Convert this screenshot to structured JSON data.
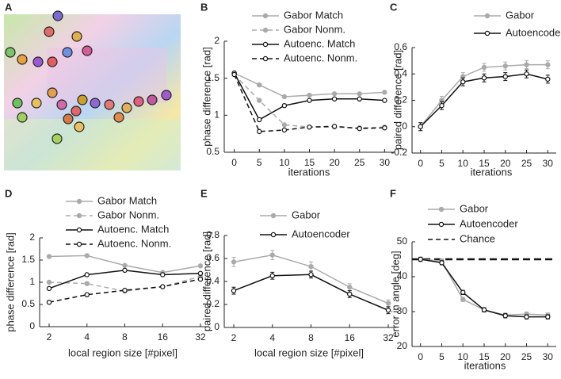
{
  "panel_labels": [
    "A",
    "B",
    "C",
    "D",
    "E",
    "F"
  ],
  "chart_data": [
    {
      "type": "line",
      "xlabel": "iterations",
      "ylabel": "phase difference [rad]",
      "x": [
        0,
        5,
        10,
        15,
        20,
        25,
        30
      ],
      "xlim": [
        -2,
        32
      ],
      "xticks": [
        0,
        5,
        10,
        15,
        20,
        25,
        30
      ],
      "ylim": [
        0.5,
        2
      ],
      "yticks": [
        0.5,
        1,
        1.5,
        2
      ],
      "series": [
        {
          "name": "Gabor Match",
          "color": "#aaaaaa",
          "dash": false,
          "marker": "dot",
          "values": [
            1.57,
            1.41,
            1.25,
            1.27,
            1.29,
            1.29,
            1.31
          ]
        },
        {
          "name": "Gabor Nonm.",
          "color": "#aaaaaa",
          "dash": true,
          "marker": "dot",
          "values": [
            1.55,
            1.2,
            0.87,
            0.84,
            0.84,
            0.83,
            0.84
          ]
        },
        {
          "name": "Autoenc. Match",
          "color": "#111111",
          "dash": false,
          "marker": "open",
          "values": [
            1.57,
            0.94,
            1.13,
            1.2,
            1.22,
            1.22,
            1.2
          ]
        },
        {
          "name": "Autoenc. Nonm.",
          "color": "#111111",
          "dash": true,
          "marker": "open",
          "values": [
            1.55,
            0.78,
            0.8,
            0.84,
            0.85,
            0.82,
            0.83
          ]
        }
      ]
    },
    {
      "type": "line",
      "xlabel": "iterations",
      "ylabel": "paired difference [rad]",
      "x": [
        0,
        5,
        10,
        15,
        20,
        25,
        30
      ],
      "xlim": [
        -2,
        32
      ],
      "xticks": [
        0,
        5,
        10,
        15,
        20,
        25,
        30
      ],
      "ylim": [
        -0.2,
        0.6
      ],
      "yticks": [
        -0.2,
        0,
        0.2,
        0.4,
        0.6
      ],
      "series": [
        {
          "name": "Gabor",
          "color": "#aaaaaa",
          "dash": false,
          "marker": "dot",
          "values": [
            0,
            0.2,
            0.38,
            0.45,
            0.46,
            0.47,
            0.47
          ],
          "errors": [
            0.03,
            0.03,
            0.03,
            0.03,
            0.03,
            0.03,
            0.03
          ]
        },
        {
          "name": "Autoencoder",
          "color": "#111111",
          "dash": false,
          "marker": "open",
          "values": [
            0,
            0.16,
            0.34,
            0.37,
            0.38,
            0.4,
            0.36
          ],
          "errors": [
            0.03,
            0.03,
            0.03,
            0.03,
            0.03,
            0.03,
            0.03
          ]
        }
      ]
    },
    {
      "type": "line",
      "xlabel": "local region size [#pixel]",
      "ylabel": "phase difference [rad]",
      "categories": [
        "2",
        "4",
        "8",
        "16",
        "32"
      ],
      "ylim": [
        0,
        2
      ],
      "yticks": [
        0,
        0.5,
        1,
        1.5,
        2
      ],
      "series": [
        {
          "name": "Gabor Match",
          "color": "#aaaaaa",
          "dash": false,
          "marker": "dot",
          "values": [
            1.58,
            1.6,
            1.38,
            1.22,
            1.37
          ]
        },
        {
          "name": "Gabor Nonm.",
          "color": "#aaaaaa",
          "dash": true,
          "marker": "dot",
          "values": [
            1.0,
            0.97,
            0.8,
            0.9,
            1.13
          ]
        },
        {
          "name": "Autoenc. Match",
          "color": "#111111",
          "dash": false,
          "marker": "open",
          "values": [
            0.86,
            1.17,
            1.27,
            1.17,
            1.2
          ]
        },
        {
          "name": "Autoenc. Nonm.",
          "color": "#111111",
          "dash": true,
          "marker": "open",
          "values": [
            0.55,
            0.72,
            0.82,
            0.9,
            1.07
          ]
        }
      ]
    },
    {
      "type": "line",
      "xlabel": "local region size [#pixel]",
      "ylabel": "paired difference [rad]",
      "categories": [
        "2",
        "4",
        "8",
        "16",
        "32"
      ],
      "ylim": [
        0,
        0.8
      ],
      "yticks": [
        0,
        0.2,
        0.4,
        0.6,
        0.8
      ],
      "series": [
        {
          "name": "Gabor",
          "color": "#aaaaaa",
          "dash": false,
          "marker": "dot",
          "values": [
            0.57,
            0.63,
            0.53,
            0.35,
            0.21
          ],
          "errors": [
            0.04,
            0.04,
            0.04,
            0.03,
            0.03
          ]
        },
        {
          "name": "Autoencoder",
          "color": "#111111",
          "dash": false,
          "marker": "open",
          "values": [
            0.32,
            0.45,
            0.46,
            0.29,
            0.15
          ],
          "errors": [
            0.03,
            0.03,
            0.03,
            0.03,
            0.03
          ]
        }
      ]
    },
    {
      "type": "line",
      "xlabel": "iterations",
      "ylabel": "error in angle [deg]",
      "x": [
        0,
        5,
        10,
        15,
        20,
        25,
        30
      ],
      "xlim": [
        -2,
        32
      ],
      "xticks": [
        0,
        5,
        10,
        15,
        20,
        25,
        30
      ],
      "ylim": [
        20,
        50
      ],
      "yticks": [
        20,
        30,
        40,
        50
      ],
      "series": [
        {
          "name": "Gabor",
          "color": "#aaaaaa",
          "dash": false,
          "marker": "dot",
          "values": [
            45,
            44.5,
            33.5,
            30.5,
            29,
            29.3,
            29
          ],
          "errors": [
            0.6,
            0.6,
            0.6,
            0.6,
            0.6,
            0.6,
            0.6
          ]
        },
        {
          "name": "Autoencoder",
          "color": "#111111",
          "dash": false,
          "marker": "open",
          "values": [
            45,
            44,
            35.5,
            30.5,
            28.8,
            28.5,
            28.5
          ],
          "errors": [
            0.6,
            0.6,
            0.6,
            0.6,
            0.6,
            0.6,
            0.6
          ]
        }
      ],
      "hlines": [
        {
          "name": "Chance",
          "value": 45,
          "color": "#111111"
        }
      ]
    }
  ]
}
